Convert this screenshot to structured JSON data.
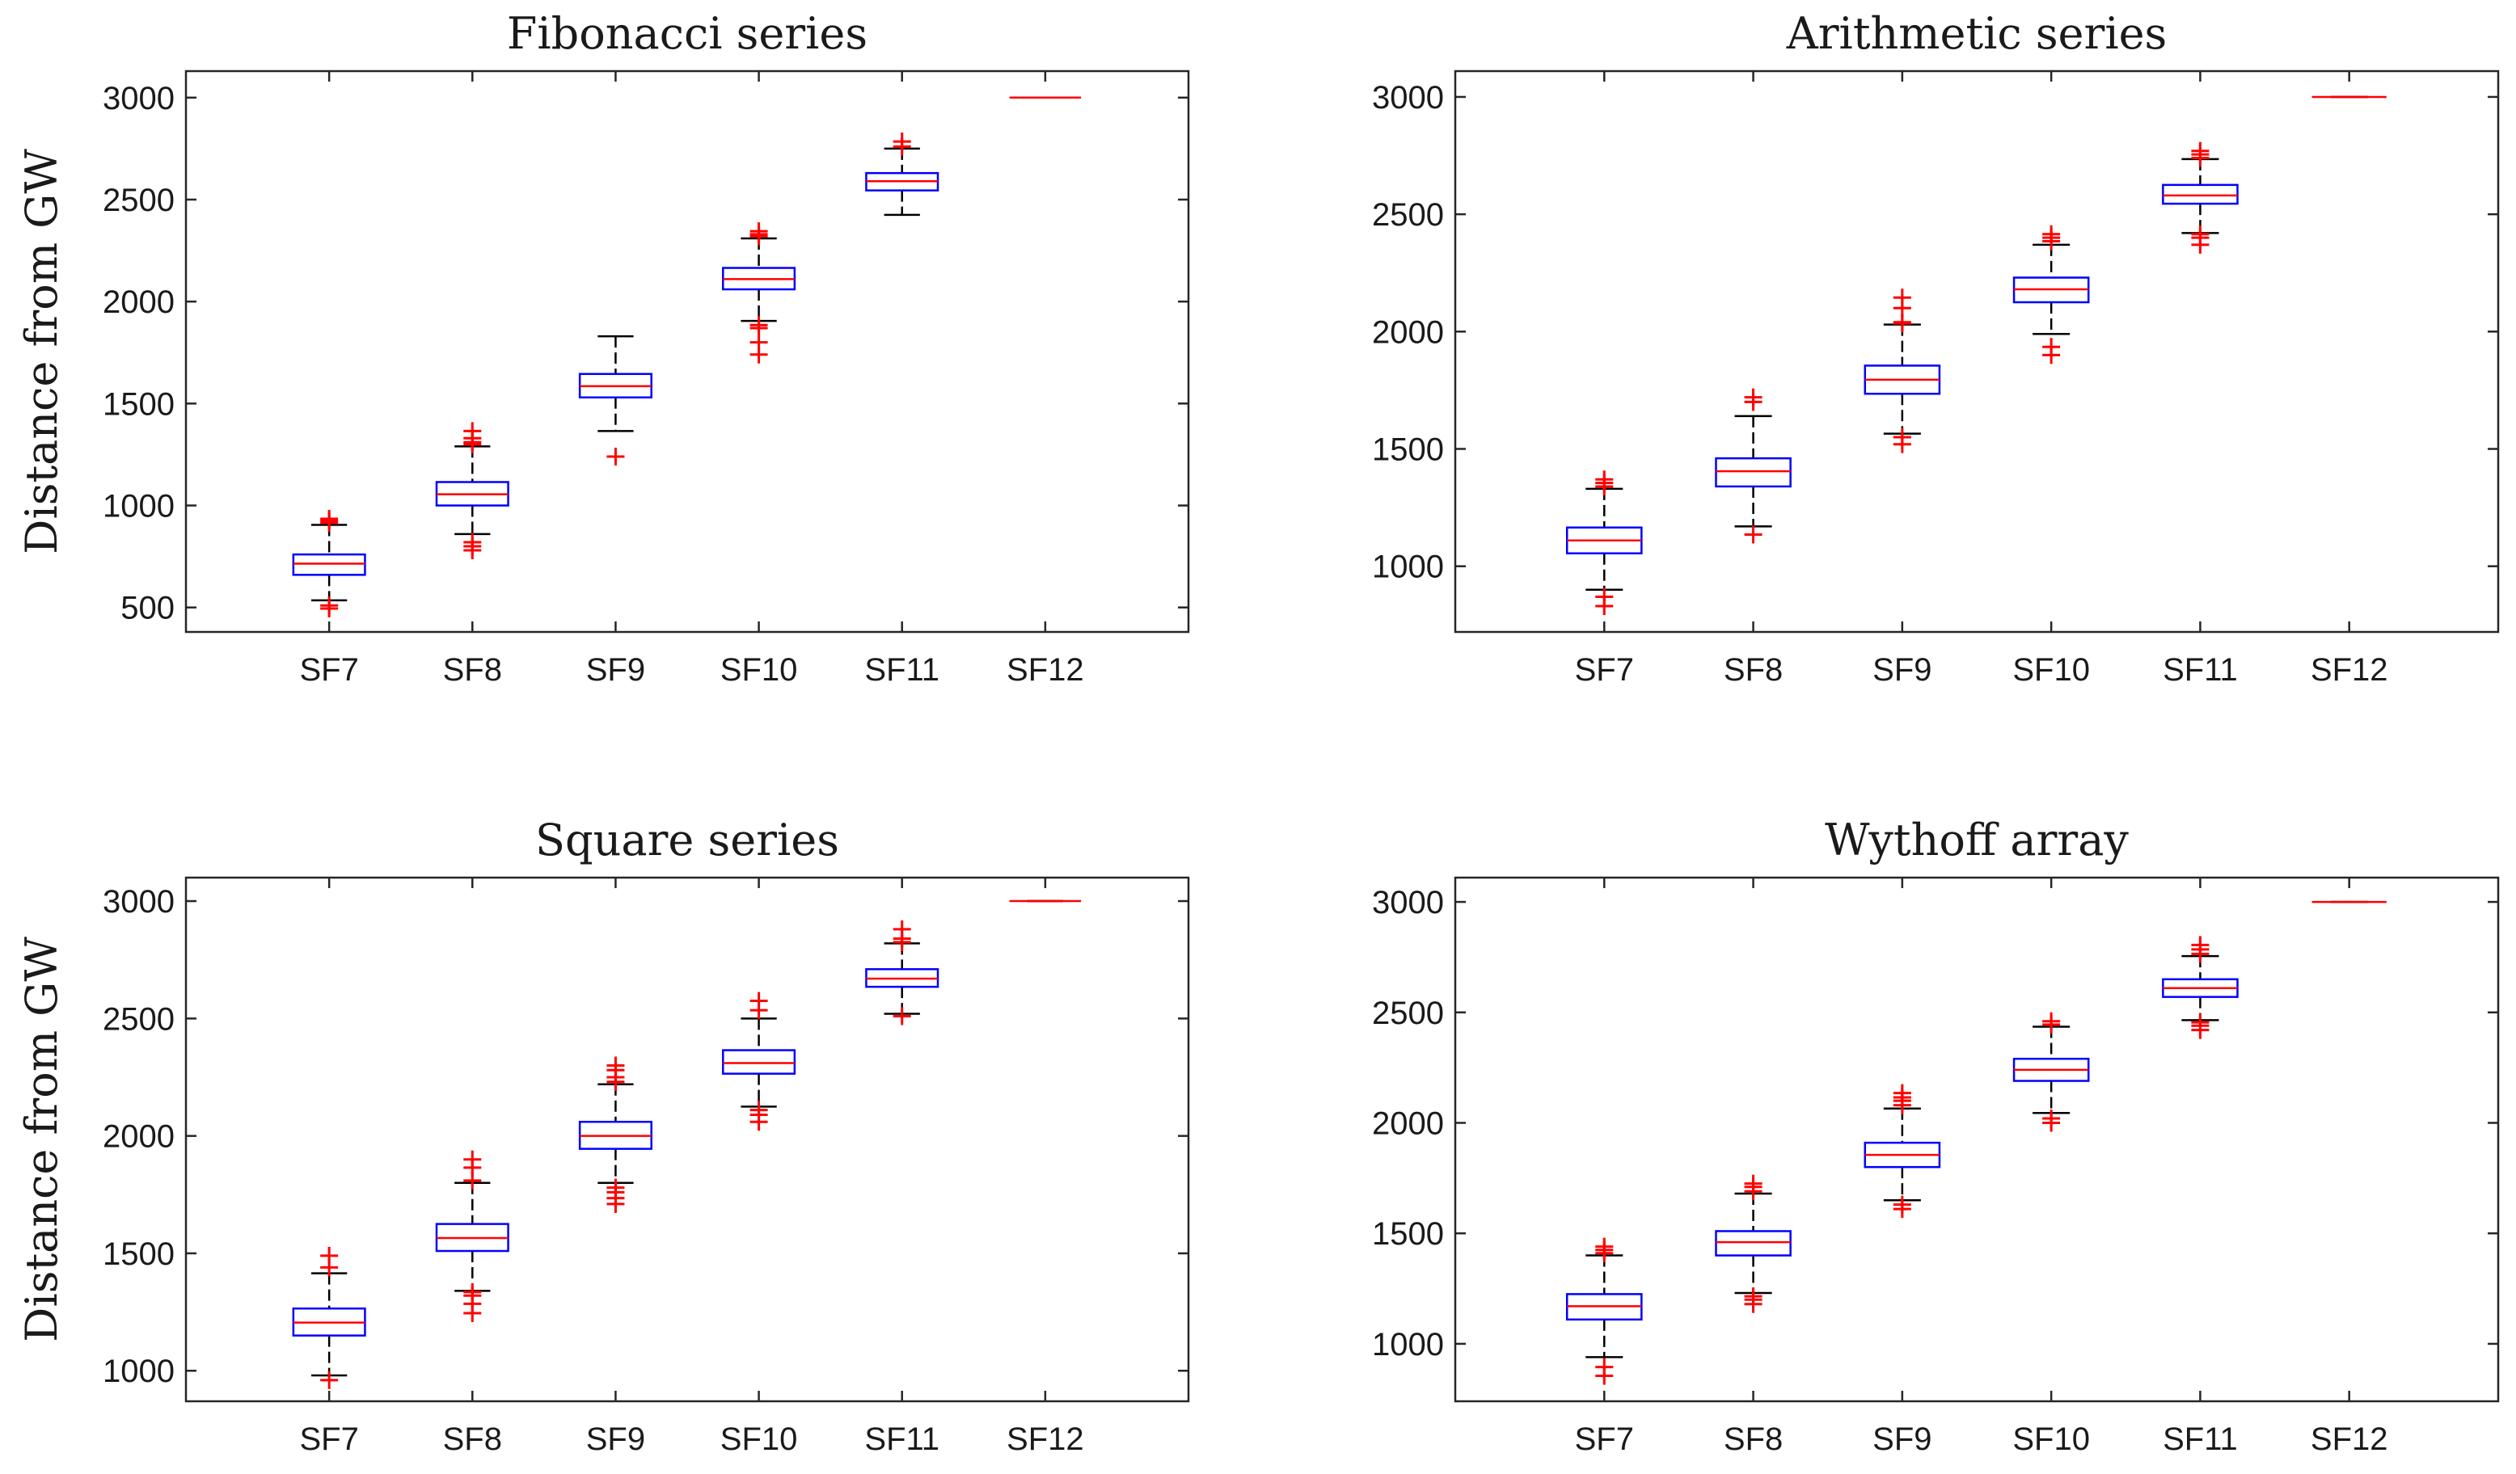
{
  "chart_data": [
    {
      "type": "boxplot",
      "title": "Fibonacci series",
      "xlabel": "",
      "ylabel": "Distance from GW",
      "categories": [
        "SF7",
        "SF8",
        "SF9",
        "SF10",
        "SF11",
        "SF12"
      ],
      "ylim": [
        380,
        3130
      ],
      "yticks": [
        500,
        1000,
        1500,
        2000,
        2500,
        3000
      ],
      "boxes": [
        {
          "q1": 660,
          "median": 715,
          "q3": 760,
          "whisker_low": 535,
          "whisker_high": 905,
          "outliers": [
            495,
            510,
            915,
            925,
            935
          ]
        },
        {
          "q1": 1000,
          "median": 1055,
          "q3": 1115,
          "whisker_low": 860,
          "whisker_high": 1290,
          "outliers": [
            780,
            800,
            820,
            1300,
            1310,
            1330,
            1365
          ]
        },
        {
          "q1": 1530,
          "median": 1585,
          "q3": 1645,
          "whisker_low": 1365,
          "whisker_high": 1830,
          "outliers": [
            1240
          ]
        },
        {
          "q1": 2060,
          "median": 2110,
          "q3": 2165,
          "whisker_low": 1905,
          "whisker_high": 2310,
          "outliers": [
            1740,
            1800,
            1870,
            1885,
            2320,
            2330,
            2345
          ]
        },
        {
          "q1": 2545,
          "median": 2590,
          "q3": 2630,
          "whisker_low": 2425,
          "whisker_high": 2750,
          "outliers": [
            2760,
            2785
          ]
        },
        {
          "q1": 3000,
          "median": 3000,
          "q3": 3000,
          "whisker_low": 3000,
          "whisker_high": 3000,
          "outliers": []
        }
      ]
    },
    {
      "type": "boxplot",
      "title": "Arithmetic series",
      "xlabel": "",
      "ylabel": "",
      "categories": [
        "SF7",
        "SF8",
        "SF9",
        "SF10",
        "SF11",
        "SF12"
      ],
      "ylim": [
        720,
        3110
      ],
      "yticks": [
        1000,
        1500,
        2000,
        2500,
        3000
      ],
      "boxes": [
        {
          "q1": 1055,
          "median": 1110,
          "q3": 1165,
          "whisker_low": 900,
          "whisker_high": 1330,
          "outliers": [
            830,
            870,
            1340,
            1355,
            1370
          ]
        },
        {
          "q1": 1340,
          "median": 1405,
          "q3": 1460,
          "whisker_low": 1170,
          "whisker_high": 1640,
          "outliers": [
            1135,
            1700,
            1720
          ]
        },
        {
          "q1": 1735,
          "median": 1795,
          "q3": 1855,
          "whisker_low": 1565,
          "whisker_high": 2030,
          "outliers": [
            1520,
            1550,
            2035,
            2040,
            2100,
            2145
          ]
        },
        {
          "q1": 2125,
          "median": 2180,
          "q3": 2230,
          "whisker_low": 1990,
          "whisker_high": 2370,
          "outliers": [
            1900,
            1935,
            2385,
            2400,
            2415
          ]
        },
        {
          "q1": 2545,
          "median": 2580,
          "q3": 2625,
          "whisker_low": 2420,
          "whisker_high": 2735,
          "outliers": [
            2370,
            2400,
            2415,
            2740,
            2755,
            2770
          ]
        },
        {
          "q1": 3000,
          "median": 3000,
          "q3": 3000,
          "whisker_low": 3000,
          "whisker_high": 3000,
          "outliers": []
        }
      ]
    },
    {
      "type": "boxplot",
      "title": "Square series",
      "xlabel": "",
      "ylabel": "Distance from GW",
      "categories": [
        "SF7",
        "SF8",
        "SF9",
        "SF10",
        "SF11",
        "SF12"
      ],
      "ylim": [
        870,
        3100
      ],
      "yticks": [
        1000,
        1500,
        2000,
        2500,
        3000
      ],
      "boxes": [
        {
          "q1": 1150,
          "median": 1205,
          "q3": 1265,
          "whisker_low": 980,
          "whisker_high": 1415,
          "outliers": [
            960,
            1440,
            1490
          ]
        },
        {
          "q1": 1510,
          "median": 1565,
          "q3": 1625,
          "whisker_low": 1340,
          "whisker_high": 1800,
          "outliers": [
            1245,
            1285,
            1320,
            1335,
            1810,
            1865,
            1900
          ]
        },
        {
          "q1": 1945,
          "median": 2000,
          "q3": 2060,
          "whisker_low": 1800,
          "whisker_high": 2220,
          "outliers": [
            1710,
            1735,
            1760,
            1780,
            2230,
            2250,
            2280,
            2300
          ]
        },
        {
          "q1": 2265,
          "median": 2310,
          "q3": 2365,
          "whisker_low": 2125,
          "whisker_high": 2500,
          "outliers": [
            2060,
            2090,
            2110,
            2535,
            2575
          ]
        },
        {
          "q1": 2635,
          "median": 2670,
          "q3": 2710,
          "whisker_low": 2520,
          "whisker_high": 2820,
          "outliers": [
            2510,
            2825,
            2840,
            2880
          ]
        },
        {
          "q1": 3000,
          "median": 3000,
          "q3": 3000,
          "whisker_low": 3000,
          "whisker_high": 3000,
          "outliers": []
        }
      ]
    },
    {
      "type": "boxplot",
      "title": "Wythoff array",
      "xlabel": "",
      "ylabel": "",
      "categories": [
        "SF7",
        "SF8",
        "SF9",
        "SF10",
        "SF11",
        "SF12"
      ],
      "ylim": [
        740,
        3110
      ],
      "yticks": [
        1000,
        1500,
        2000,
        2500,
        3000
      ],
      "boxes": [
        {
          "q1": 1110,
          "median": 1170,
          "q3": 1225,
          "whisker_low": 940,
          "whisker_high": 1400,
          "outliers": [
            855,
            895,
            1410,
            1425,
            1440
          ]
        },
        {
          "q1": 1400,
          "median": 1460,
          "q3": 1510,
          "whisker_low": 1230,
          "whisker_high": 1680,
          "outliers": [
            1180,
            1200,
            1215,
            1690,
            1710,
            1725
          ]
        },
        {
          "q1": 1800,
          "median": 1855,
          "q3": 1910,
          "whisker_low": 1650,
          "whisker_high": 2065,
          "outliers": [
            1610,
            1630,
            2080,
            2100,
            2115,
            2135
          ]
        },
        {
          "q1": 2190,
          "median": 2240,
          "q3": 2290,
          "whisker_low": 2045,
          "whisker_high": 2435,
          "outliers": [
            2000,
            2020,
            2445,
            2460
          ]
        },
        {
          "q1": 2570,
          "median": 2610,
          "q3": 2650,
          "whisker_low": 2465,
          "whisker_high": 2755,
          "outliers": [
            2420,
            2440,
            2455,
            2765,
            2785,
            2805
          ]
        },
        {
          "q1": 3000,
          "median": 3000,
          "q3": 3000,
          "whisker_low": 3000,
          "whisker_high": 3000,
          "outliers": []
        }
      ]
    }
  ]
}
